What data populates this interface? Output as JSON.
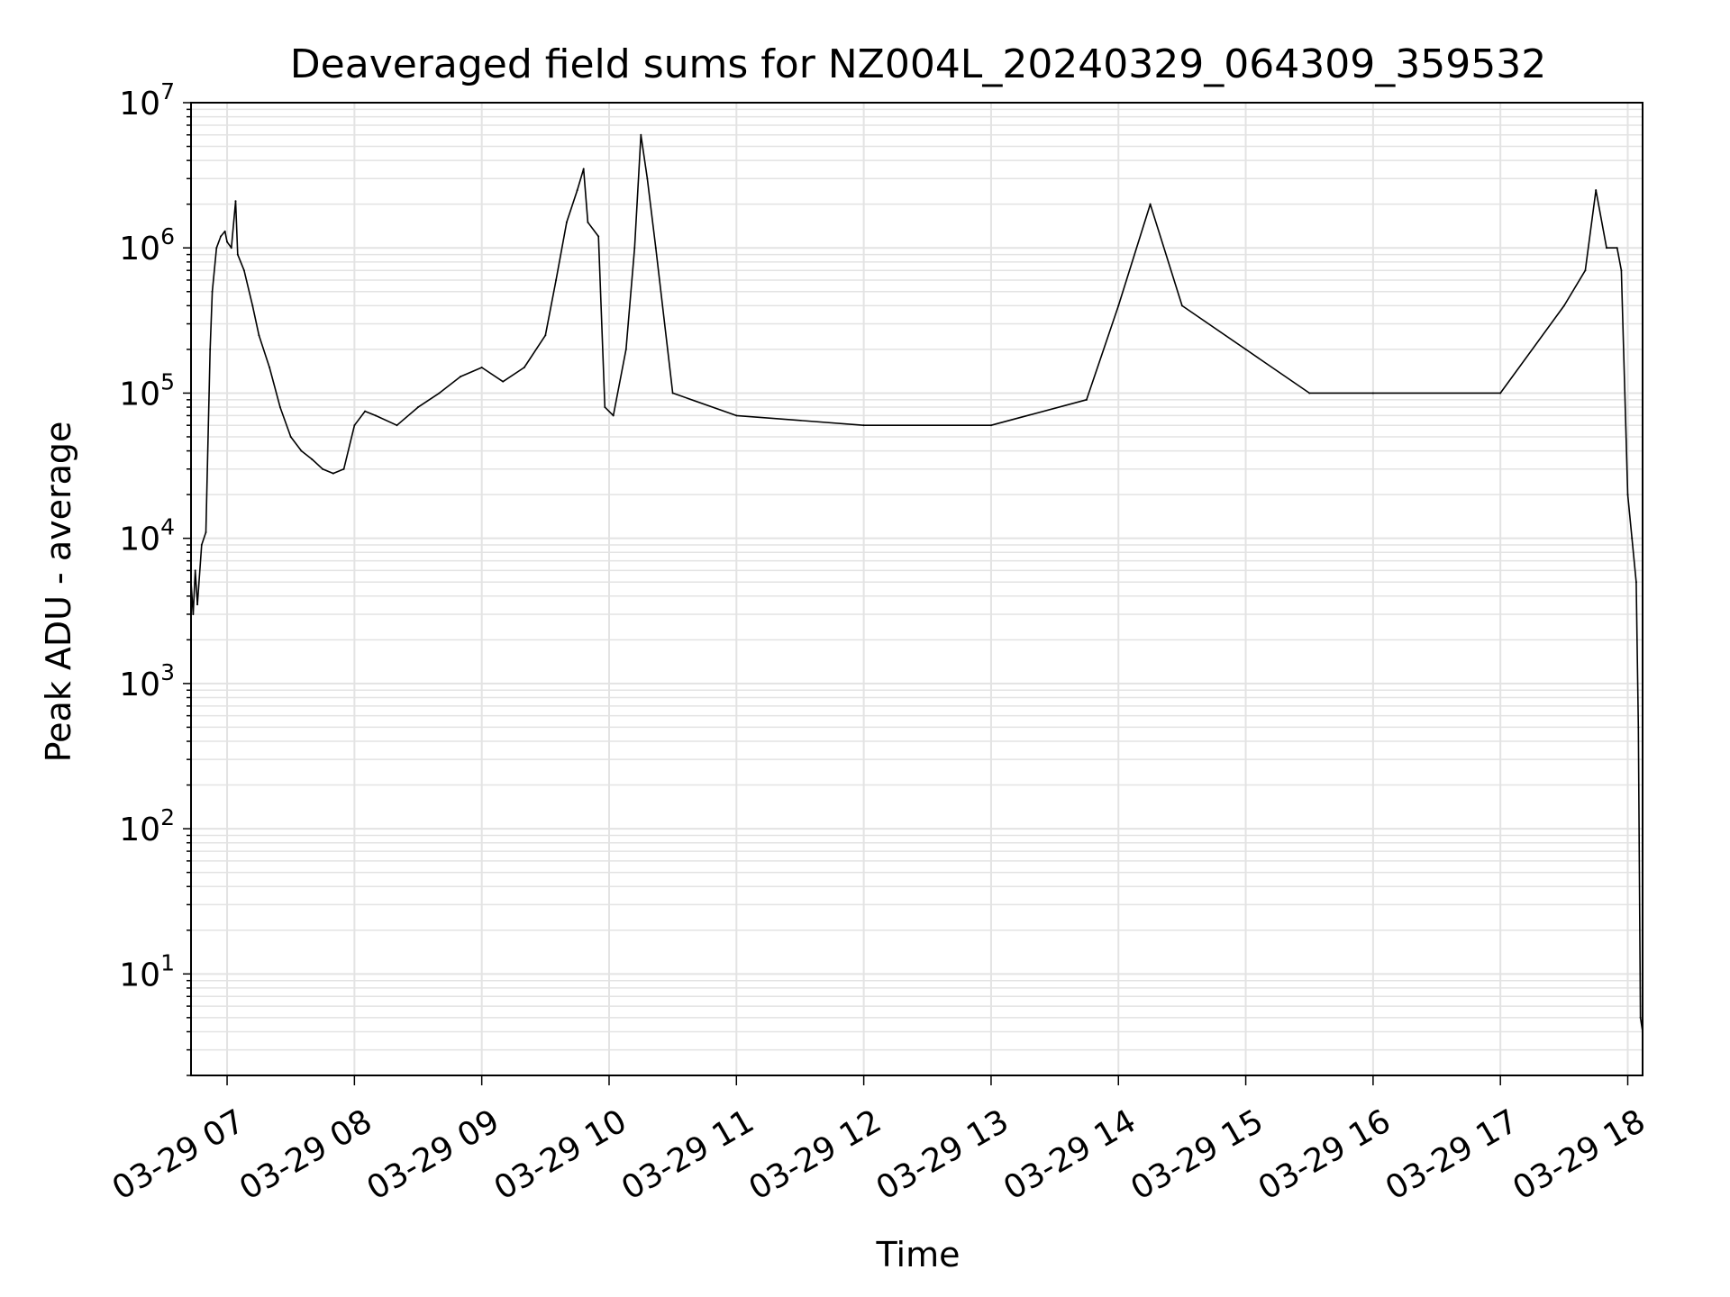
{
  "chart_data": {
    "type": "line",
    "title": "Deaveraged field sums for NZ004L_20240329_064309_359532",
    "xlabel": "Time",
    "ylabel": "Peak ADU - average",
    "yscale": "log",
    "ylim": [
      2,
      10000000
    ],
    "xlim": [
      "2024-03-29 06:43",
      "2024-03-29 18:07"
    ],
    "grid": true,
    "x_tick_labels": [
      "03-29 07",
      "03-29 08",
      "03-29 09",
      "03-29 10",
      "03-29 11",
      "03-29 12",
      "03-29 13",
      "03-29 14",
      "03-29 15",
      "03-29 16",
      "03-29 17",
      "03-29 18"
    ],
    "y_tick_labels": [
      {
        "base": "10",
        "exp": "1"
      },
      {
        "base": "10",
        "exp": "2"
      },
      {
        "base": "10",
        "exp": "3"
      },
      {
        "base": "10",
        "exp": "4"
      },
      {
        "base": "10",
        "exp": "5"
      },
      {
        "base": "10",
        "exp": "6"
      },
      {
        "base": "10",
        "exp": "7"
      }
    ],
    "series": [
      {
        "color": "#000000",
        "points": [
          [
            "2024-03-29 06:43",
            5000
          ],
          [
            "2024-03-29 06:44",
            3000
          ],
          [
            "2024-03-29 06:45",
            6000
          ],
          [
            "2024-03-29 06:46",
            3500
          ],
          [
            "2024-03-29 06:48",
            9000
          ],
          [
            "2024-03-29 06:50",
            11000
          ],
          [
            "2024-03-29 06:52",
            200000
          ],
          [
            "2024-03-29 06:53",
            500000
          ],
          [
            "2024-03-29 06:55",
            1000000
          ],
          [
            "2024-03-29 06:57",
            1200000
          ],
          [
            "2024-03-29 06:59",
            1300000
          ],
          [
            "2024-03-29 07:00",
            1100000
          ],
          [
            "2024-03-29 07:02",
            1000000
          ],
          [
            "2024-03-29 07:04",
            2100000
          ],
          [
            "2024-03-29 07:05",
            900000
          ],
          [
            "2024-03-29 07:08",
            700000
          ],
          [
            "2024-03-29 07:12",
            400000
          ],
          [
            "2024-03-29 07:15",
            250000
          ],
          [
            "2024-03-29 07:20",
            150000
          ],
          [
            "2024-03-29 07:25",
            80000
          ],
          [
            "2024-03-29 07:30",
            50000
          ],
          [
            "2024-03-29 07:35",
            40000
          ],
          [
            "2024-03-29 07:40",
            35000
          ],
          [
            "2024-03-29 07:45",
            30000
          ],
          [
            "2024-03-29 07:50",
            28000
          ],
          [
            "2024-03-29 07:55",
            30000
          ],
          [
            "2024-03-29 08:00",
            60000
          ],
          [
            "2024-03-29 08:05",
            75000
          ],
          [
            "2024-03-29 08:10",
            70000
          ],
          [
            "2024-03-29 08:20",
            60000
          ],
          [
            "2024-03-29 08:30",
            80000
          ],
          [
            "2024-03-29 08:40",
            100000
          ],
          [
            "2024-03-29 08:50",
            130000
          ],
          [
            "2024-03-29 09:00",
            150000
          ],
          [
            "2024-03-29 09:10",
            120000
          ],
          [
            "2024-03-29 09:20",
            150000
          ],
          [
            "2024-03-29 09:30",
            250000
          ],
          [
            "2024-03-29 09:35",
            600000
          ],
          [
            "2024-03-29 09:40",
            1500000
          ],
          [
            "2024-03-29 09:45",
            2500000
          ],
          [
            "2024-03-29 09:48",
            3500000
          ],
          [
            "2024-03-29 09:50",
            1500000
          ],
          [
            "2024-03-29 09:55",
            1200000
          ],
          [
            "2024-03-29 09:58",
            80000
          ],
          [
            "2024-03-29 10:02",
            70000
          ],
          [
            "2024-03-29 10:08",
            200000
          ],
          [
            "2024-03-29 10:12",
            1000000
          ],
          [
            "2024-03-29 10:15",
            6000000
          ],
          [
            "2024-03-29 10:18",
            3000000
          ],
          [
            "2024-03-29 10:22",
            1000000
          ],
          [
            "2024-03-29 10:30",
            100000
          ],
          [
            "2024-03-29 11:00",
            70000
          ],
          [
            "2024-03-29 12:00",
            60000
          ],
          [
            "2024-03-29 13:00",
            60000
          ],
          [
            "2024-03-29 13:45",
            90000
          ],
          [
            "2024-03-29 14:00",
            400000
          ],
          [
            "2024-03-29 14:15",
            2000000
          ],
          [
            "2024-03-29 14:30",
            400000
          ],
          [
            "2024-03-29 15:00",
            200000
          ],
          [
            "2024-03-29 15:30",
            100000
          ],
          [
            "2024-03-29 16:00",
            100000
          ],
          [
            "2024-03-29 17:00",
            100000
          ],
          [
            "2024-03-29 17:30",
            400000
          ],
          [
            "2024-03-29 17:40",
            700000
          ],
          [
            "2024-03-29 17:45",
            2500000
          ],
          [
            "2024-03-29 17:50",
            1000000
          ],
          [
            "2024-03-29 17:55",
            1000000
          ],
          [
            "2024-03-29 17:57",
            700000
          ],
          [
            "2024-03-29 18:00",
            20000
          ],
          [
            "2024-03-29 18:02",
            10000
          ],
          [
            "2024-03-29 18:04",
            5000
          ],
          [
            "2024-03-29 18:05",
            500
          ],
          [
            "2024-03-29 18:06",
            5
          ],
          [
            "2024-03-29 18:07",
            4
          ]
        ]
      }
    ]
  }
}
